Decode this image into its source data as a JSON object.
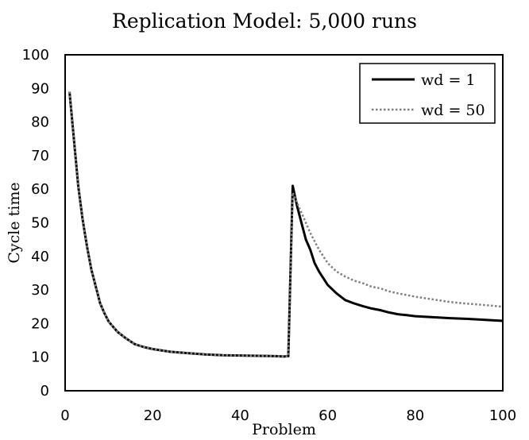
{
  "chart_data": {
    "type": "line",
    "title": "Replication Model: 5,000 runs",
    "xlabel": "Problem",
    "ylabel": "Cycle time",
    "xlim": [
      0,
      100
    ],
    "ylim": [
      0,
      100
    ],
    "xticks": [
      0,
      20,
      40,
      60,
      80,
      100
    ],
    "yticks": [
      0,
      10,
      20,
      30,
      40,
      50,
      60,
      70,
      80,
      90,
      100
    ],
    "grid": false,
    "legend_position": "top-right",
    "series": [
      {
        "name": "wd = 1",
        "color": "#000000",
        "style": "solid",
        "x": [
          1,
          2,
          3,
          4,
          5,
          6,
          7,
          8,
          9,
          10,
          12,
          14,
          16,
          18,
          20,
          24,
          28,
          32,
          36,
          40,
          44,
          48,
          50,
          51,
          52,
          53,
          54,
          55,
          56,
          57,
          58,
          60,
          62,
          64,
          66,
          68,
          70,
          72,
          74,
          76,
          78,
          80,
          84,
          88,
          92,
          96,
          100
        ],
        "y": [
          89,
          75,
          61,
          51,
          43,
          36,
          31,
          26,
          23,
          20.5,
          17.5,
          15.5,
          13.8,
          13,
          12.4,
          11.6,
          11.2,
          10.8,
          10.6,
          10.5,
          10.4,
          10.3,
          10.2,
          10.3,
          61,
          55,
          50,
          45,
          42,
          38,
          35.5,
          31.5,
          29,
          27,
          26,
          25.2,
          24.5,
          24,
          23.3,
          22.8,
          22.5,
          22.2,
          21.9,
          21.6,
          21.4,
          21.1,
          20.8
        ]
      },
      {
        "name": "wd = 50",
        "color": "#808080",
        "style": "dotted",
        "x": [
          1,
          2,
          3,
          4,
          5,
          6,
          7,
          8,
          9,
          10,
          12,
          14,
          16,
          18,
          20,
          24,
          28,
          32,
          36,
          40,
          44,
          48,
          50,
          51,
          52,
          53,
          54,
          55,
          56,
          57,
          58,
          60,
          62,
          64,
          66,
          68,
          70,
          72,
          74,
          76,
          78,
          80,
          84,
          88,
          92,
          96,
          100
        ],
        "y": [
          89,
          75,
          61,
          51,
          43,
          36,
          31,
          26,
          23,
          20.5,
          17.5,
          15.5,
          13.8,
          13,
          12.4,
          11.6,
          11.2,
          10.8,
          10.6,
          10.5,
          10.4,
          10.3,
          10.2,
          10.3,
          59,
          56,
          53,
          50,
          47,
          44.5,
          42,
          38,
          35.5,
          34,
          32.8,
          32,
          31,
          30.5,
          29.6,
          29,
          28.5,
          28,
          27.2,
          26.4,
          25.9,
          25.5,
          25
        ]
      }
    ]
  }
}
